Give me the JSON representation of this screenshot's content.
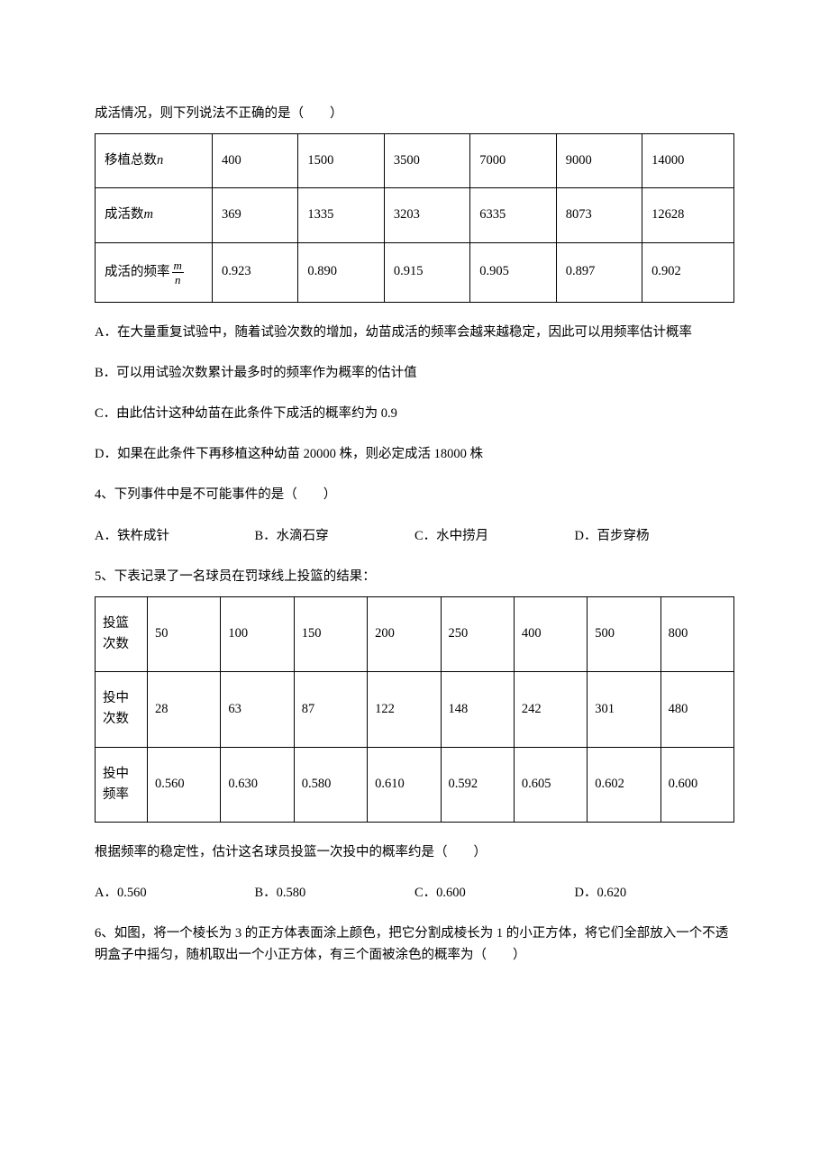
{
  "intro1": "成活情况，则下列说法不正确的是（　　）",
  "table1": {
    "rows": [
      {
        "label_pre": "移植总数",
        "var": "n",
        "cells": [
          "400",
          "1500",
          "3500",
          "7000",
          "9000",
          "14000"
        ]
      },
      {
        "label_pre": "成活数",
        "var": "m",
        "cells": [
          "369",
          "1335",
          "3203",
          "6335",
          "8073",
          "12628"
        ]
      },
      {
        "label_pre": "成活的频率",
        "frac_num": "m",
        "frac_den": "n",
        "cells": [
          "0.923",
          "0.890",
          "0.915",
          "0.905",
          "0.897",
          "0.902"
        ]
      }
    ]
  },
  "q3_optA": "A．在大量重复试验中，随着试验次数的增加，幼苗成活的频率会越来越稳定，因此可以用频率估计概率",
  "q3_optB": "B．可以用试验次数累计最多时的频率作为概率的估计值",
  "q3_optC": "C．由此估计这种幼苗在此条件下成活的概率约为 0.9",
  "q3_optD": "D．如果在此条件下再移植这种幼苗 20000 株，则必定成活 18000 株",
  "q4_stem": "4、下列事件中是不可能事件的是（　　）",
  "q4_opts": {
    "A": "A．铁杵成针",
    "B": "B．水滴石穿",
    "C": "C．水中捞月",
    "D": "D．百步穿杨"
  },
  "q5_stem": "5、下表记录了一名球员在罚球线上投篮的结果：",
  "table2": {
    "rows": [
      {
        "label": "投篮次数",
        "cells": [
          "50",
          "100",
          "150",
          "200",
          "250",
          "400",
          "500",
          "800"
        ]
      },
      {
        "label": "投中次数",
        "cells": [
          "28",
          "63",
          "87",
          "122",
          "148",
          "242",
          "301",
          "480"
        ]
      },
      {
        "label": "投中频率",
        "cells": [
          "0.560",
          "0.630",
          "0.580",
          "0.610",
          "0.592",
          "0.605",
          "0.602",
          "0.600"
        ]
      }
    ]
  },
  "q5_after": "根据频率的稳定性，估计这名球员投篮一次投中的概率约是（　　）",
  "q5_opts": {
    "A": "A．0.560",
    "B": "B．0.580",
    "C": "C．0.600",
    "D": "D．0.620"
  },
  "q6_stem": "6、如图，将一个棱长为 3 的正方体表面涂上颜色，把它分割成棱长为 1 的小正方体，将它们全部放入一个不透明盒子中摇匀，随机取出一个小正方体，有三个面被涂色的概率为（　　）"
}
